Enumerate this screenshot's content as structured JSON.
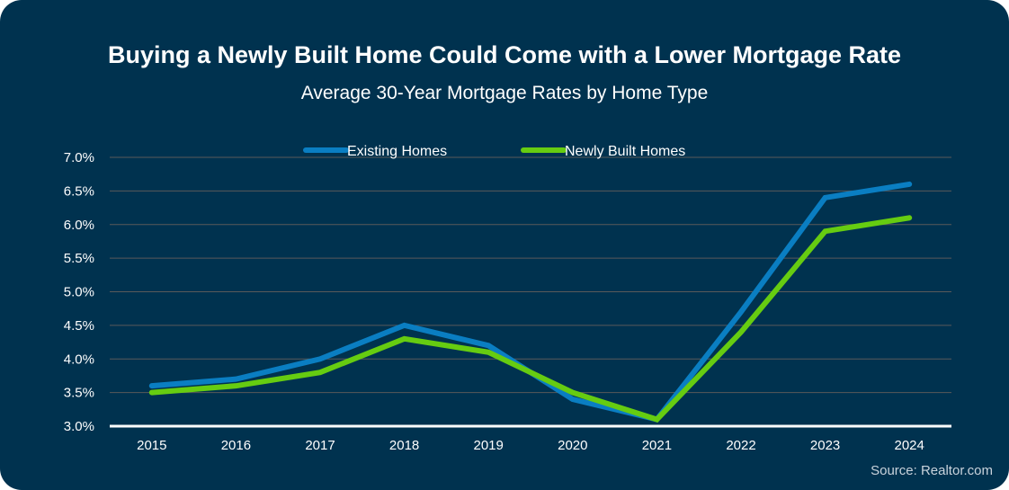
{
  "chart_data": {
    "type": "line",
    "title": "Buying a Newly Built Home Could Come with a Lower Mortgage Rate",
    "subtitle": "Average 30-Year Mortgage Rates by Home Type",
    "categories": [
      "2015",
      "2016",
      "2017",
      "2018",
      "2019",
      "2020",
      "2021",
      "2022",
      "2023",
      "2024"
    ],
    "series": [
      {
        "name": "Existing Homes",
        "color": "#0a7ec2",
        "values": [
          3.6,
          3.7,
          4.0,
          4.5,
          4.2,
          3.4,
          3.1,
          4.7,
          6.4,
          6.6
        ]
      },
      {
        "name": "Newly Built Homes",
        "color": "#66cc11",
        "values": [
          3.5,
          3.6,
          3.8,
          4.3,
          4.1,
          3.5,
          3.1,
          4.4,
          5.9,
          6.1
        ]
      }
    ],
    "y_ticks": [
      "3.0%",
      "3.5%",
      "4.0%",
      "4.5%",
      "5.0%",
      "5.5%",
      "6.0%",
      "6.5%",
      "7.0%"
    ],
    "ylim": [
      3.0,
      7.0
    ],
    "xlabel": "",
    "ylabel": "",
    "grid": true,
    "legend_position": "top",
    "source": "Source: Realtor.com",
    "background_color": "#00324f"
  }
}
